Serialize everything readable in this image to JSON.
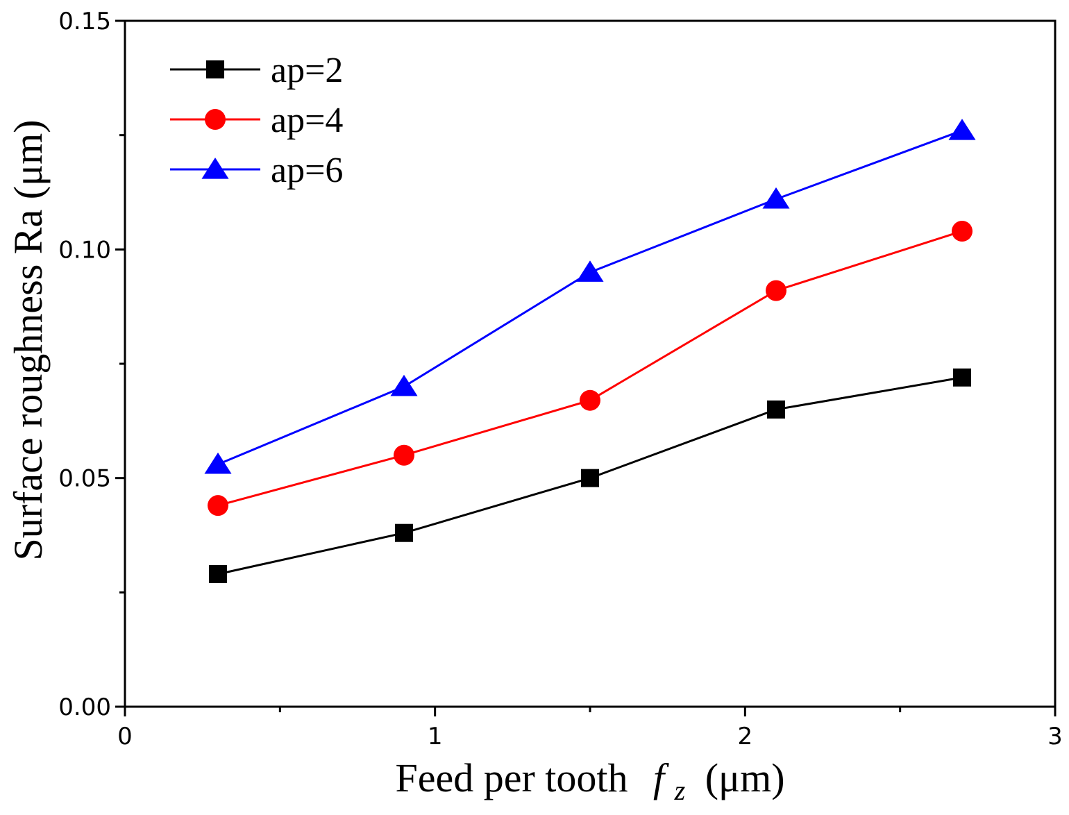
{
  "chart_data": {
    "type": "line",
    "xlabel": "Feed per tooth",
    "xlabel_symbol": "f",
    "xlabel_subscript": "z",
    "xlabel_unit": "(μm)",
    "ylabel": "Surface roughness Ra (μm)",
    "xlim": [
      0,
      3
    ],
    "ylim": [
      0,
      0.15
    ],
    "x_ticks": [
      0,
      1,
      2,
      3
    ],
    "x_tick_labels": [
      "0",
      "1",
      "2",
      "3"
    ],
    "x_minor_ticks": [
      0.5,
      1.5,
      2.5
    ],
    "y_ticks": [
      0,
      0.05,
      0.1,
      0.15
    ],
    "y_tick_labels": [
      "0.00",
      "0.05",
      "0.10",
      "0.15"
    ],
    "y_minor_ticks": [
      0.025,
      0.075,
      0.125
    ],
    "grid": false,
    "legend_position": "top-left",
    "x": [
      0.3,
      0.9,
      1.5,
      2.1,
      2.7
    ],
    "series": [
      {
        "name": "ap=2",
        "color": "#000000",
        "marker": "square",
        "values": [
          0.029,
          0.038,
          0.05,
          0.065,
          0.072
        ]
      },
      {
        "name": "ap=4",
        "color": "#ff0000",
        "marker": "circle",
        "values": [
          0.044,
          0.055,
          0.067,
          0.091,
          0.104
        ]
      },
      {
        "name": "ap=6",
        "color": "#0000ff",
        "marker": "triangle",
        "values": [
          0.053,
          0.07,
          0.095,
          0.111,
          0.126
        ]
      }
    ]
  }
}
